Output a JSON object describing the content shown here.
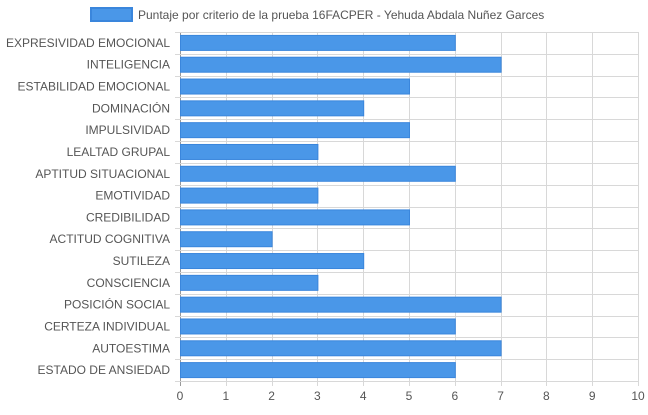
{
  "chart_data": {
    "type": "bar",
    "orientation": "horizontal",
    "legend_position": "top",
    "grid": true,
    "xlim": [
      0,
      10
    ],
    "x_ticks": [
      0,
      1,
      2,
      3,
      4,
      5,
      6,
      7,
      8,
      9,
      10
    ],
    "categories": [
      "EXPRESIVIDAD EMOCIONAL",
      "INTELIGENCIA",
      "ESTABILIDAD EMOCIONAL",
      "DOMINACIÓN",
      "IMPULSIVIDAD",
      "LEALTAD GRUPAL",
      "APTITUD SITUACIONAL",
      "EMOTIVIDAD",
      "CREDIBILIDAD",
      "ACTITUD COGNITIVA",
      "SUTILEZA",
      "CONSCIENCIA",
      "POSICIÓN SOCIAL",
      "CERTEZA INDIVIDUAL",
      "AUTOESTIMA",
      "ESTADO DE ANSIEDAD"
    ],
    "series": [
      {
        "name": "Puntaje por criterio de la prueba 16FACPER - Yehuda Abdala Nuñez Garces",
        "values": [
          6,
          7,
          5,
          4,
          5,
          3,
          6,
          3,
          5,
          2,
          4,
          3,
          7,
          6,
          7,
          6
        ]
      }
    ],
    "colors": {
      "bar_fill": "#4a97e8",
      "bar_stroke": "#3a86dc",
      "grid": "#d8d8d8",
      "axis": "#999999",
      "text": "#555555"
    }
  }
}
